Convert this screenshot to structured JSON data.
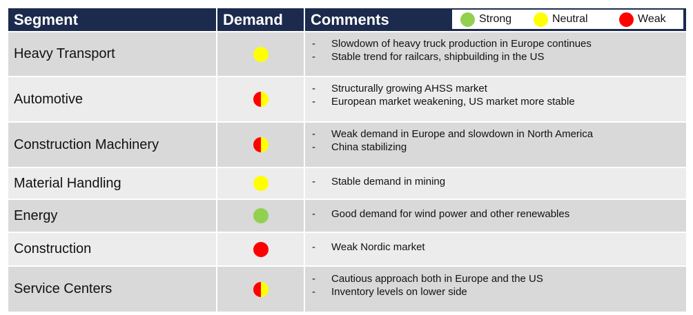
{
  "header": {
    "segment": "Segment",
    "demand": "Demand",
    "comments": "Comments"
  },
  "legend": [
    {
      "label": "Strong",
      "color": "#92d050"
    },
    {
      "label": "Neutral",
      "color": "#ffff00"
    },
    {
      "label": "Weak",
      "color": "#ff0000"
    }
  ],
  "table": {
    "rows": [
      {
        "segment": "Heavy Transport",
        "demand": [
          "Neutral"
        ],
        "comments": [
          "Slowdown of heavy truck production in Europe continues",
          "Stable trend for railcars, shipbuilding in the US"
        ]
      },
      {
        "segment": "Automotive",
        "demand": [
          "Weak",
          "Neutral"
        ],
        "comments": [
          "Structurally growing AHSS market",
          "European market weakening, US market more stable"
        ]
      },
      {
        "segment": "Construction Machinery",
        "demand": [
          "Weak",
          "Neutral"
        ],
        "comments": [
          "Weak demand in Europe and slowdown in North America",
          "China stabilizing"
        ]
      },
      {
        "segment": "Material Handling",
        "demand": [
          "Neutral"
        ],
        "comments": [
          "Stable demand in mining"
        ]
      },
      {
        "segment": "Energy",
        "demand": [
          "Strong"
        ],
        "comments": [
          "Good demand for wind power and other renewables"
        ]
      },
      {
        "segment": "Construction",
        "demand": [
          "Weak"
        ],
        "comments": [
          "Weak Nordic market"
        ]
      },
      {
        "segment": "Service Centers",
        "demand": [
          "Weak",
          "Neutral"
        ],
        "comments": [
          "Cautious approach both in Europe and the US",
          "Inventory levels on lower side"
        ]
      }
    ]
  }
}
